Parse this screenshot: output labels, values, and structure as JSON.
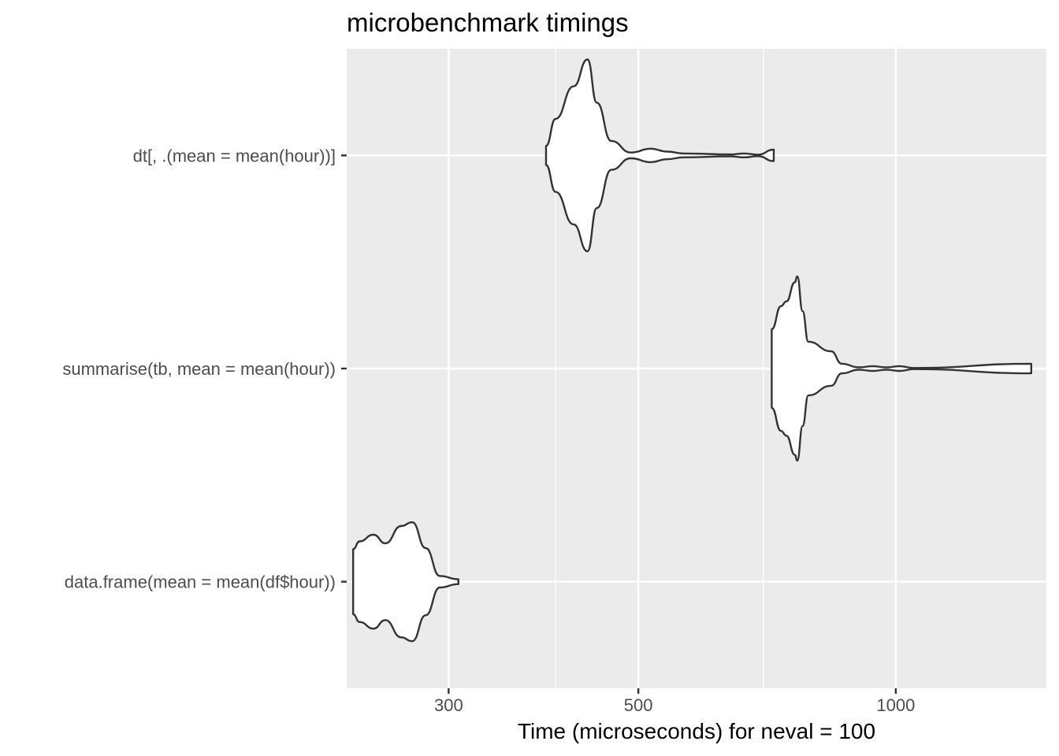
{
  "chart_data": {
    "type": "violin",
    "title": "microbenchmark timings",
    "xlabel": "Time (microseconds) for neval = 100",
    "ylabel": "",
    "x_scale": "log10",
    "xlim": [
      228,
      1500
    ],
    "x_ticks": [
      300,
      500,
      1000
    ],
    "x_minor_ticks": [
      400,
      700
    ],
    "x_tick_labels": [
      "300",
      "500",
      "1000"
    ],
    "grid": true,
    "background": "#ebebeb",
    "gridline_color": "#ffffff",
    "violin_fill": "#ffffff",
    "violin_stroke": "#333333",
    "categories": [
      "dt[, .(mean = mean(hour))]",
      "summarise(tb, mean = mean(hour))",
      "data.frame(mean = mean(df$hour))"
    ],
    "series": [
      {
        "category": "dt[, .(mean = mean(hour))]",
        "n": 100,
        "min": 390,
        "max": 720,
        "density": [
          [
            390,
            0.1
          ],
          [
            400,
            0.38
          ],
          [
            420,
            0.72
          ],
          [
            436,
            1.0
          ],
          [
            447,
            0.55
          ],
          [
            465,
            0.15
          ],
          [
            490,
            0.03
          ],
          [
            517,
            0.07
          ],
          [
            540,
            0.04
          ],
          [
            565,
            0.02
          ],
          [
            640,
            0.01
          ],
          [
            665,
            0.02
          ],
          [
            690,
            0.008
          ],
          [
            720,
            0.06
          ]
        ]
      },
      {
        "category": "summarise(tb, mean = mean(hour))",
        "n": 100,
        "min": 716,
        "max": 1440,
        "density": [
          [
            716,
            0.41
          ],
          [
            734,
            0.65
          ],
          [
            745,
            0.7
          ],
          [
            762,
            0.9
          ],
          [
            767,
            0.96
          ],
          [
            778,
            0.6
          ],
          [
            790,
            0.28
          ],
          [
            840,
            0.18
          ],
          [
            865,
            0.05
          ],
          [
            905,
            0.012
          ],
          [
            940,
            0.025
          ],
          [
            975,
            0.012
          ],
          [
            1010,
            0.025
          ],
          [
            1050,
            0.006
          ],
          [
            1440,
            0.05
          ]
        ]
      },
      {
        "category": "data.frame(mean = mean(df$hour))",
        "n": 100,
        "min": 232,
        "max": 308,
        "density": [
          [
            232,
            0.34
          ],
          [
            236,
            0.42
          ],
          [
            245,
            0.49
          ],
          [
            253,
            0.4
          ],
          [
            264,
            0.58
          ],
          [
            272,
            0.62
          ],
          [
            282,
            0.35
          ],
          [
            293,
            0.06
          ],
          [
            308,
            0.025
          ]
        ]
      }
    ]
  }
}
